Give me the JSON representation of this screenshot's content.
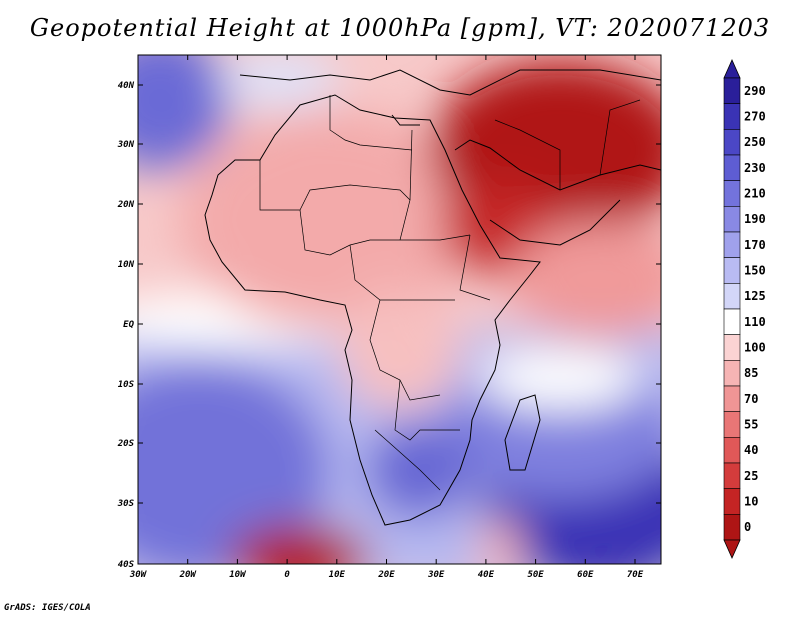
{
  "title": "Geopotential Height at 1000hPa [gpm], VT: 2020071203",
  "footer": "GrADS: IGES/COLA",
  "lat_ticks": [
    "40N",
    "30N",
    "20N",
    "10N",
    "EQ",
    "10S",
    "20S",
    "30S",
    "40S"
  ],
  "lon_ticks": [
    "30W",
    "20W",
    "10W",
    "0",
    "10E",
    "20E",
    "30E",
    "40E",
    "50E",
    "60E",
    "70E"
  ],
  "colorbar": {
    "labels": [
      "290",
      "270",
      "250",
      "230",
      "210",
      "190",
      "170",
      "150",
      "125",
      "110",
      "100",
      "85",
      "70",
      "55",
      "40",
      "25",
      "10",
      "0"
    ],
    "colors": [
      "#2a1f9a",
      "#3a33b5",
      "#4b47c6",
      "#5e5dd3",
      "#7373dc",
      "#8989e4",
      "#a0a1ec",
      "#b9bbf3",
      "#d3d6f8",
      "#ffffff",
      "#fbd3d3",
      "#f6b4b4",
      "#f09595",
      "#e97676",
      "#e05858",
      "#d43c3c",
      "#c42424",
      "#ae1515"
    ]
  },
  "colors": {
    "ocean_high": "#2f2aa6",
    "neutral": "#ffffff",
    "land_low": "#a81818"
  }
}
